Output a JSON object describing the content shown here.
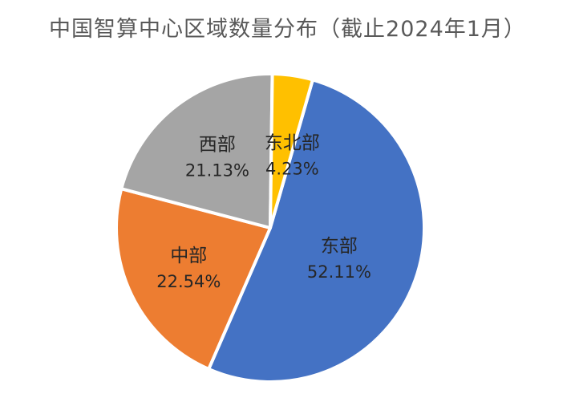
{
  "chart_data": {
    "type": "pie",
    "title": "中国智算中心区域数量分布（截止2024年1月）",
    "unit": "%",
    "slices": [
      {
        "label": "东部",
        "value": 52.11,
        "display": "52.11%",
        "color": "#4472C4"
      },
      {
        "label": "中部",
        "value": 22.54,
        "display": "22.54%",
        "color": "#ED7D31"
      },
      {
        "label": "西部",
        "value": 21.13,
        "display": "21.13%",
        "color": "#A5A5A5"
      },
      {
        "label": "东北部",
        "value": 4.23,
        "display": "4.23%",
        "color": "#FFC000"
      }
    ],
    "start_direction": "clockwise from top",
    "legend": "none (data labels inside slices)"
  }
}
